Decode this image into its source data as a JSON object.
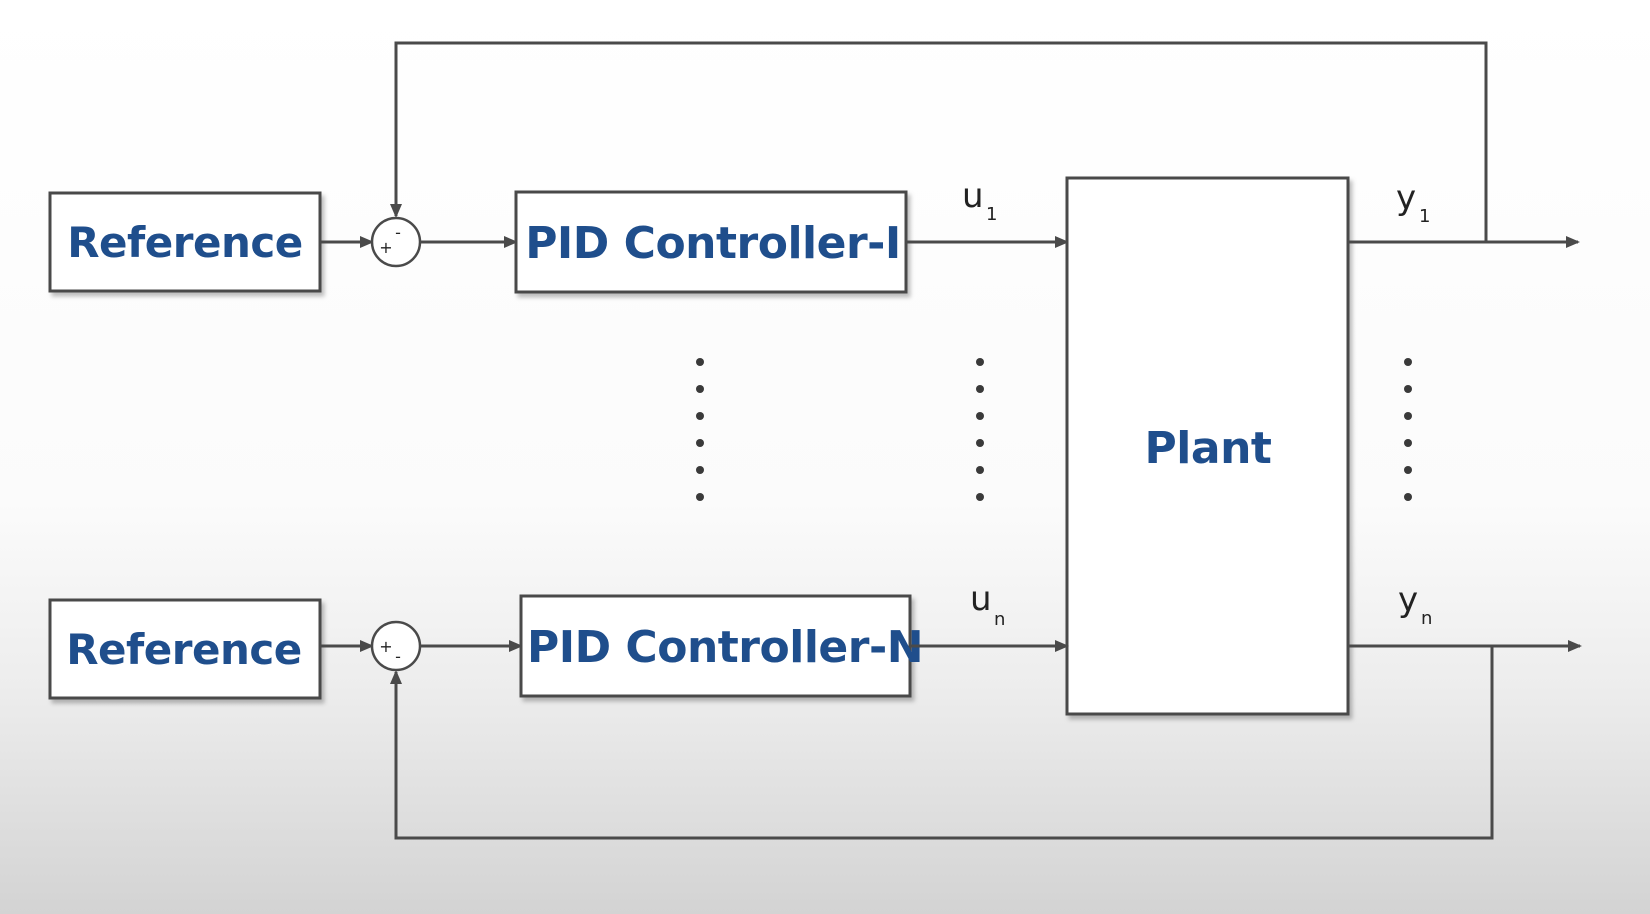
{
  "blocks": {
    "reference_1": "Reference",
    "reference_n": "Reference",
    "pid_1": "PID Controller-I",
    "pid_n": "PID Controller-N",
    "plant": "Plant"
  },
  "signals": {
    "u1_main": "u",
    "u1_sub": "1",
    "un_main": "u",
    "un_sub": "n",
    "y1_main": "y",
    "y1_sub": "1",
    "yn_main": "y",
    "yn_sub": "n"
  },
  "summing_signs": {
    "top_minus": "-",
    "top_plus": "+",
    "bottom_plus": "+",
    "bottom_minus": "-"
  },
  "colors": {
    "block_text": "#1f4e8c",
    "line": "#4a4a4a"
  }
}
